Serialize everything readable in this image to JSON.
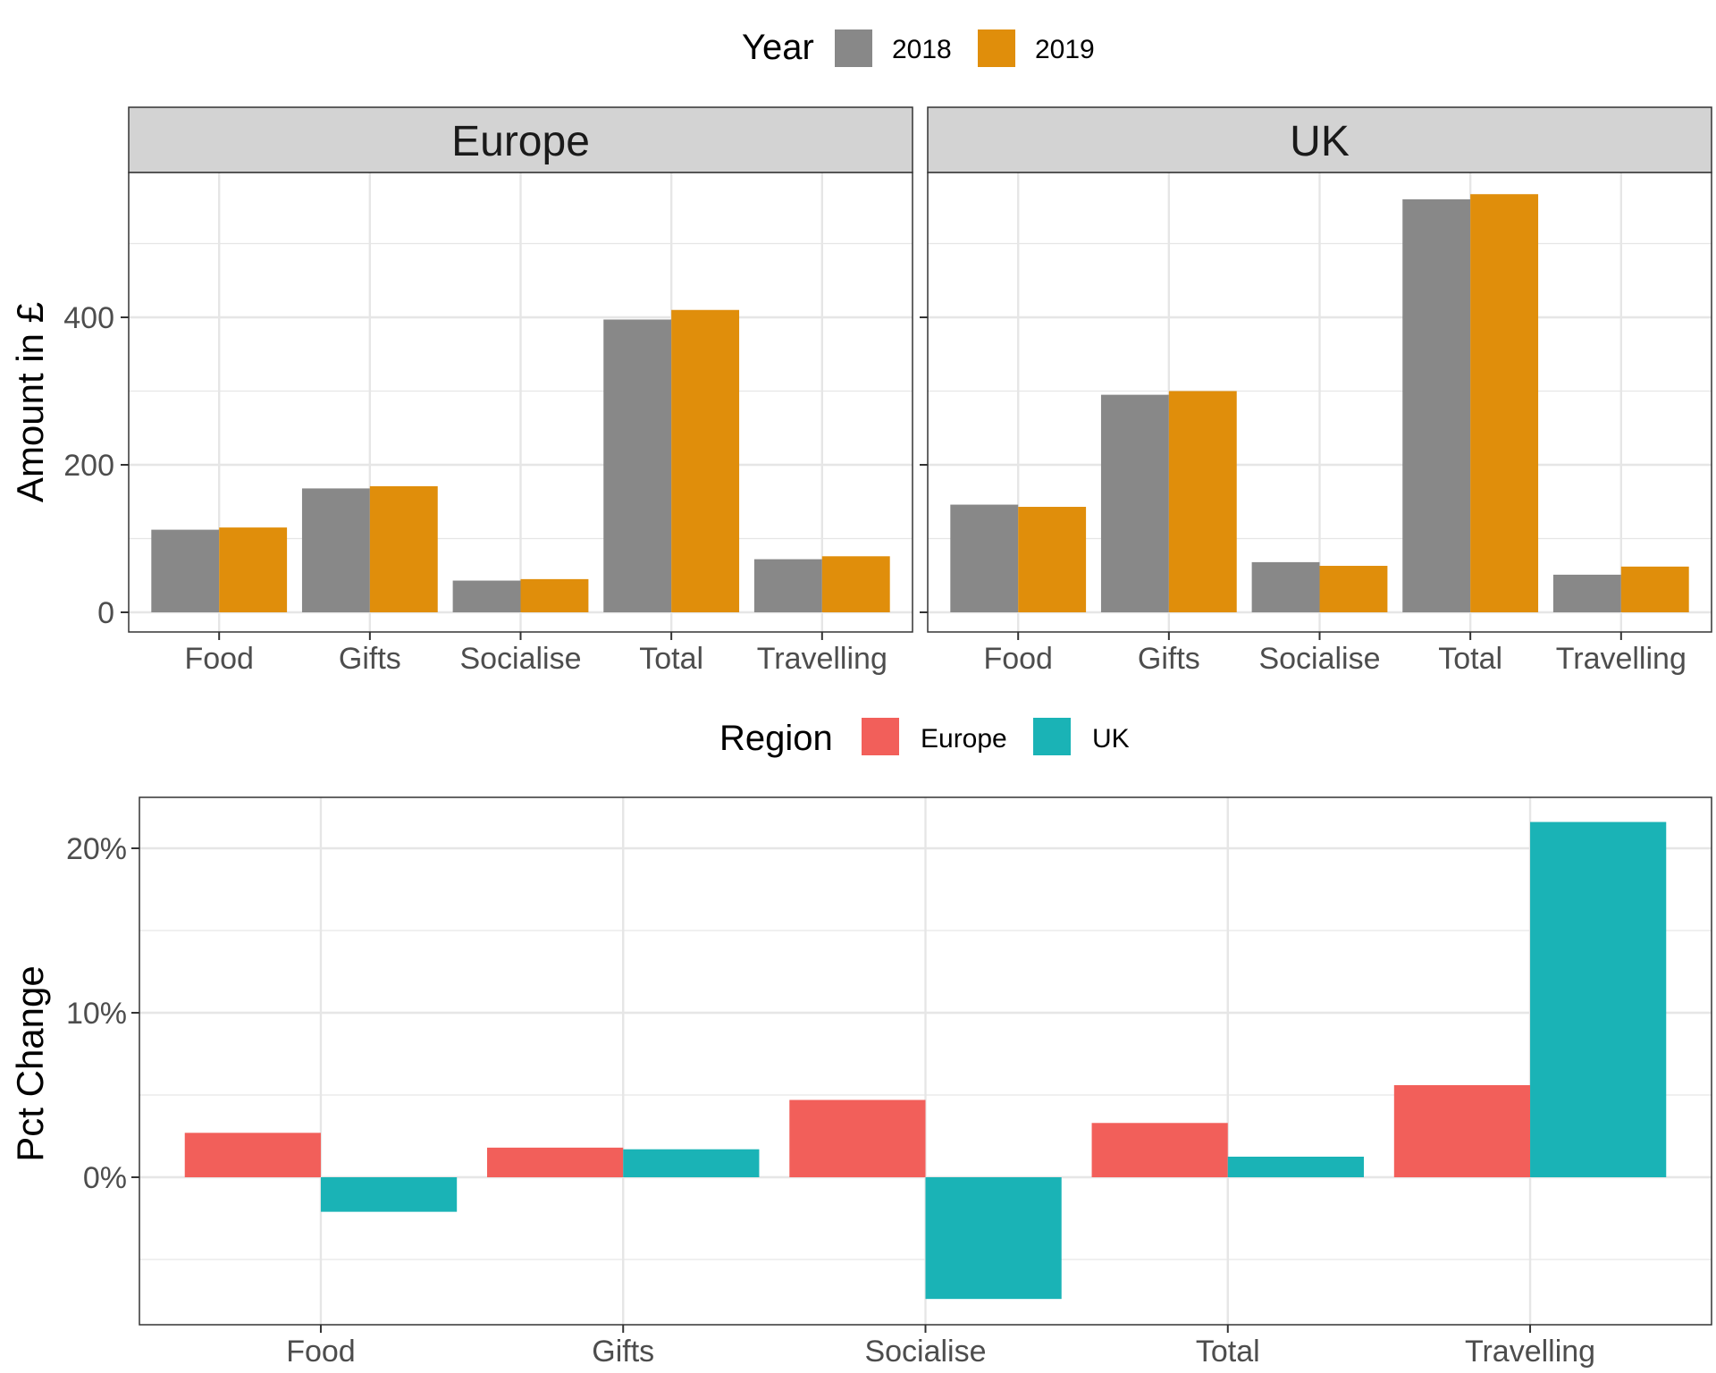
{
  "colors": {
    "y2018": "#888888",
    "y2019": "#e08e0b",
    "europe": "#f25f5a",
    "uk": "#1ab3b6",
    "strip_bg": "#d3d3d3",
    "grid": "#e6e6e6",
    "axis_text": "#4d4d4d",
    "frame": "#333333"
  },
  "chart_data": [
    {
      "type": "bar",
      "facets": [
        "Europe",
        "UK"
      ],
      "categories": [
        "Food",
        "Gifts",
        "Socialise",
        "Total",
        "Travelling"
      ],
      "legend": {
        "title": "Year",
        "position": "top",
        "items": [
          "2018",
          "2019"
        ]
      },
      "ylabel": "Amount in £",
      "xlabel": "",
      "ylim": [
        0,
        620
      ],
      "yticks": [
        0,
        200,
        400
      ],
      "ytick_labels": [
        "0",
        "200",
        "400"
      ],
      "grid": true,
      "series": [
        {
          "name": "2018",
          "facet": "Europe",
          "values": [
            112,
            168,
            43,
            397,
            72
          ]
        },
        {
          "name": "2019",
          "facet": "Europe",
          "values": [
            115,
            171,
            45,
            410,
            76
          ]
        },
        {
          "name": "2018",
          "facet": "UK",
          "values": [
            146,
            295,
            68,
            560,
            51
          ]
        },
        {
          "name": "2019",
          "facet": "UK",
          "values": [
            143,
            300,
            63,
            567,
            62
          ]
        }
      ]
    },
    {
      "type": "bar",
      "categories": [
        "Food",
        "Gifts",
        "Socialise",
        "Total",
        "Travelling"
      ],
      "legend": {
        "title": "Region",
        "position": "top",
        "items": [
          "Europe",
          "UK"
        ]
      },
      "ylabel": "Pct Change",
      "xlabel": "",
      "ylim": [
        -8.8,
        23.1
      ],
      "yticks": [
        0,
        10,
        20
      ],
      "ytick_labels": [
        "0%",
        "10%",
        "20%"
      ],
      "grid": true,
      "series": [
        {
          "name": "Europe",
          "values": [
            2.7,
            1.8,
            4.7,
            3.3,
            5.6
          ]
        },
        {
          "name": "UK",
          "values": [
            -2.1,
            1.7,
            -7.4,
            1.25,
            21.6
          ]
        }
      ]
    }
  ]
}
